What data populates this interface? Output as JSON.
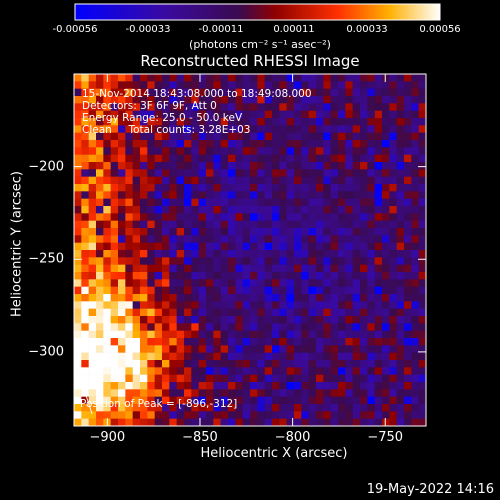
{
  "chart_data": {
    "type": "heatmap",
    "title": "Reconstructed RHESSI Image",
    "xlabel": "Heliocentric X (arcsec)",
    "ylabel": "Heliocentric Y (arcsec)",
    "xlim": [
      -918,
      -728
    ],
    "ylim": [
      -340,
      -150
    ],
    "x_ticks": [
      -900,
      -850,
      -800,
      -750
    ],
    "y_ticks": [
      -300,
      -250,
      -200
    ],
    "colorbar": {
      "min": -0.00056,
      "max": 0.00056,
      "ticks": [
        "-0.00056",
        "-0.00033",
        "-0.00011",
        "0.00011",
        "0.00033",
        "0.00056"
      ],
      "units": "(photons cm⁻² s⁻¹ asec⁻²)"
    },
    "annotations": {
      "time": "15-Nov-2014 18:43:08.000 to 18:49:08.000",
      "detectors": "Detectors: 3F 6F 9F, Att 0",
      "energy": "Energy Range: 25.0 - 50.0 keV",
      "method": "Clean     Total counts: 3.28E+03",
      "peak": "Position of Peak = [-896,-312]"
    },
    "peak_position": [
      -896,
      -312
    ]
  },
  "footer": {
    "date": "19-May-2022 14:16"
  }
}
